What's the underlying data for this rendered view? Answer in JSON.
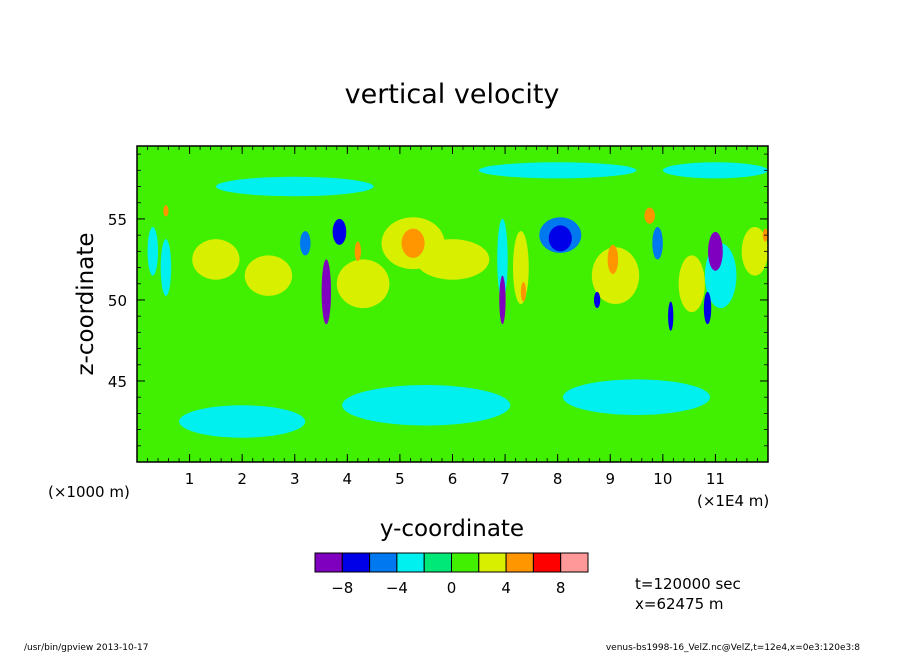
{
  "chart_data": {
    "type": "heatmap",
    "title": "vertical velocity",
    "xlabel": "y-coordinate",
    "ylabel": "z-coordinate",
    "x_scale_note": "(×1E4 m)",
    "y_scale_note": "(×1000 m)",
    "xlim": [
      0,
      12
    ],
    "ylim": [
      40,
      59.5
    ],
    "x_ticks": [
      "1",
      "2",
      "3",
      "4",
      "5",
      "6",
      "7",
      "8",
      "9",
      "10",
      "11"
    ],
    "y_ticks": [
      "45",
      "50",
      "55"
    ],
    "colorbar": {
      "colors": [
        "#8000c0",
        "#0000e8",
        "#0078f0",
        "#00f0f0",
        "#00e878",
        "#40f000",
        "#d8f000",
        "#ff9600",
        "#ff0000",
        "#ff9898"
      ],
      "bounds": [
        -10,
        -8,
        -6,
        -4,
        -2,
        0,
        2,
        4,
        6,
        8,
        10
      ],
      "labels": [
        "-8",
        "-4",
        "0",
        "4",
        "8"
      ]
    },
    "background_value": 0.5,
    "features": [
      {
        "y": 3.6,
        "z": 50.5,
        "value": -9,
        "w": 0.09,
        "h": 4.0
      },
      {
        "y": 3.85,
        "z": 54.2,
        "value": -7.5,
        "w": 0.13,
        "h": 1.6
      },
      {
        "y": 3.2,
        "z": 53.5,
        "value": -5,
        "w": 0.1,
        "h": 1.5
      },
      {
        "y": 5.25,
        "z": 53.5,
        "value": 5.5,
        "w": 0.22,
        "h": 1.8
      },
      {
        "y": 5.25,
        "z": 53.5,
        "value": 2.5,
        "w": 0.6,
        "h": 3.2
      },
      {
        "y": 4.2,
        "z": 53.0,
        "value": 5,
        "w": 0.06,
        "h": 1.2
      },
      {
        "y": 4.3,
        "z": 51.0,
        "value": 2.5,
        "w": 0.5,
        "h": 3.0
      },
      {
        "y": 6.95,
        "z": 50.0,
        "value": -9,
        "w": 0.06,
        "h": 3.0
      },
      {
        "y": 6.95,
        "z": 52.5,
        "value": -4,
        "w": 0.1,
        "h": 5.0
      },
      {
        "y": 7.35,
        "z": 50.5,
        "value": 5,
        "w": 0.05,
        "h": 1.2
      },
      {
        "y": 7.3,
        "z": 52.0,
        "value": 2.5,
        "w": 0.15,
        "h": 4.5
      },
      {
        "y": 8.05,
        "z": 53.8,
        "value": -8,
        "w": 0.22,
        "h": 1.6
      },
      {
        "y": 8.05,
        "z": 54.0,
        "value": -5,
        "w": 0.4,
        "h": 2.2
      },
      {
        "y": 8.75,
        "z": 50.0,
        "value": -7,
        "w": 0.06,
        "h": 1.0
      },
      {
        "y": 9.05,
        "z": 52.5,
        "value": 5,
        "w": 0.1,
        "h": 1.8
      },
      {
        "y": 9.1,
        "z": 51.5,
        "value": 2.5,
        "w": 0.45,
        "h": 3.5
      },
      {
        "y": 9.75,
        "z": 55.2,
        "value": 5.5,
        "w": 0.1,
        "h": 1.0
      },
      {
        "y": 9.9,
        "z": 53.5,
        "value": -4.5,
        "w": 0.1,
        "h": 2.0
      },
      {
        "y": 10.15,
        "z": 49.0,
        "value": -7,
        "w": 0.05,
        "h": 1.8
      },
      {
        "y": 10.55,
        "z": 51.0,
        "value": 2.5,
        "w": 0.25,
        "h": 3.5
      },
      {
        "y": 11.0,
        "z": 53.0,
        "value": -8.5,
        "w": 0.14,
        "h": 2.4
      },
      {
        "y": 10.85,
        "z": 49.5,
        "value": -7,
        "w": 0.07,
        "h": 2.0
      },
      {
        "y": 11.1,
        "z": 51.5,
        "value": -3.5,
        "w": 0.3,
        "h": 4.0
      },
      {
        "y": 11.75,
        "z": 53.0,
        "value": 2.5,
        "w": 0.25,
        "h": 3.0
      },
      {
        "y": 11.95,
        "z": 54.0,
        "value": 5,
        "w": 0.05,
        "h": 0.8
      },
      {
        "y": 0.55,
        "z": 55.5,
        "value": 5,
        "w": 0.05,
        "h": 0.7
      },
      {
        "y": 0.55,
        "z": 52.0,
        "value": -4,
        "w": 0.1,
        "h": 3.5
      },
      {
        "y": 0.3,
        "z": 53.0,
        "value": -3,
        "w": 0.1,
        "h": 3.0
      },
      {
        "y": 1.5,
        "z": 52.5,
        "value": 2.5,
        "w": 0.45,
        "h": 2.5
      },
      {
        "y": 2.5,
        "z": 51.5,
        "value": 2.5,
        "w": 0.45,
        "h": 2.5
      },
      {
        "y": 6.0,
        "z": 52.5,
        "value": 2.5,
        "w": 0.7,
        "h": 2.5
      },
      {
        "y": 5.5,
        "z": 43.5,
        "value": -2.5,
        "w": 1.6,
        "h": 2.5
      },
      {
        "y": 2.0,
        "z": 42.5,
        "value": -2.5,
        "w": 1.2,
        "h": 2.0
      },
      {
        "y": 9.5,
        "z": 44.0,
        "value": -2.5,
        "w": 1.4,
        "h": 2.2
      },
      {
        "y": 3.0,
        "z": 57.0,
        "value": -2.5,
        "w": 1.5,
        "h": 1.2
      },
      {
        "y": 8.0,
        "z": 58.0,
        "value": -2.5,
        "w": 1.5,
        "h": 1.0
      },
      {
        "y": 11.0,
        "z": 58.0,
        "value": -2.5,
        "w": 1.0,
        "h": 1.0
      }
    ]
  },
  "info": {
    "time": "t=120000 sec",
    "xpos": "x=62475 m"
  },
  "footer": {
    "left": "/usr/bin/gpview   2013-10-17",
    "right": "venus-bs1998-16_VelZ.nc@VelZ,t=12e4,x=0e3:120e3:8"
  }
}
